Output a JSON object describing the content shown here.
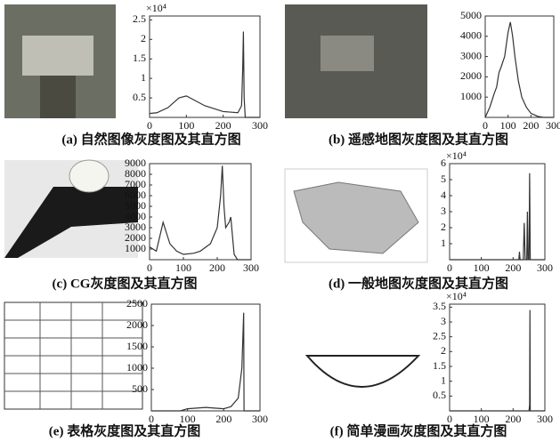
{
  "chart_data": [
    {
      "type": "line",
      "caption": "(a) 自然图像灰度图及其直方图",
      "exponent": "×10⁴",
      "xlim": [
        0,
        300
      ],
      "xticks": [
        0,
        100,
        200,
        300
      ],
      "ylim": [
        0,
        2.6
      ],
      "yticks": [
        0.5,
        1,
        1.5,
        2,
        2.5
      ],
      "series": [
        {
          "color": "#333333",
          "x": [
            0,
            20,
            50,
            80,
            100,
            120,
            150,
            200,
            240,
            250,
            253,
            255,
            257,
            260,
            300
          ],
          "values": [
            0.1,
            0.12,
            0.25,
            0.5,
            0.55,
            0.45,
            0.3,
            0.15,
            0.12,
            0.3,
            1.2,
            2.2,
            0.5,
            0,
            0
          ]
        }
      ]
    },
    {
      "type": "line",
      "caption": "(b) 遥感地图灰度图及其直方图",
      "xlim": [
        0,
        300
      ],
      "xticks": [
        0,
        100,
        200,
        300
      ],
      "ylim": [
        0,
        5000
      ],
      "yticks": [
        1000,
        2000,
        3000,
        4000,
        5000
      ],
      "series": [
        {
          "color": "#333333",
          "x": [
            0,
            20,
            40,
            50,
            60,
            70,
            85,
            100,
            110,
            120,
            130,
            145,
            160,
            180,
            200,
            230,
            255,
            300
          ],
          "values": [
            0,
            500,
            1200,
            1500,
            2200,
            2500,
            3000,
            4200,
            4700,
            4000,
            3000,
            1800,
            1000,
            500,
            200,
            50,
            0,
            0
          ]
        }
      ]
    },
    {
      "type": "line",
      "caption": "(c) CG灰度图及其直方图",
      "xlim": [
        0,
        300
      ],
      "xticks": [
        0,
        100,
        200,
        300
      ],
      "ylim": [
        0,
        9000
      ],
      "yticks": [
        1000,
        2000,
        3000,
        4000,
        5000,
        6000,
        7000,
        8000,
        9000
      ],
      "series": [
        {
          "color": "#333333",
          "x": [
            0,
            20,
            40,
            50,
            60,
            80,
            100,
            130,
            150,
            180,
            200,
            210,
            215,
            220,
            225,
            235,
            240,
            250,
            260,
            300
          ],
          "values": [
            1200,
            800,
            3500,
            2500,
            1500,
            800,
            500,
            600,
            800,
            1500,
            3000,
            6000,
            8800,
            5000,
            3000,
            3500,
            4000,
            500,
            0,
            0
          ]
        }
      ]
    },
    {
      "type": "line",
      "caption": "(d) 一般地图灰度图及其直方图",
      "exponent": "×10⁴",
      "xlim": [
        0,
        300
      ],
      "xticks": [
        0,
        100,
        200,
        300
      ],
      "ylim": [
        0,
        6
      ],
      "yticks": [
        1,
        2,
        3,
        4,
        5,
        6
      ],
      "series": [
        {
          "color": "#333333",
          "x": [
            0,
            200,
            218,
            220,
            222,
            232,
            235,
            238,
            243,
            245,
            247,
            250,
            252,
            254,
            300
          ],
          "values": [
            0,
            0,
            0,
            0.5,
            0,
            0,
            2.3,
            0,
            0,
            3,
            0,
            0,
            5.4,
            0,
            0
          ]
        }
      ]
    },
    {
      "type": "line",
      "caption": "(e) 表格灰度图及其直方图",
      "xlim": [
        0,
        300
      ],
      "xticks": [
        0,
        100,
        200,
        300
      ],
      "ylim": [
        0,
        2500
      ],
      "yticks": [
        500,
        1000,
        1500,
        2000,
        2500
      ],
      "series": [
        {
          "color": "#333333",
          "x": [
            0,
            80,
            100,
            150,
            200,
            220,
            240,
            250,
            255,
            256,
            300
          ],
          "values": [
            0,
            0,
            50,
            80,
            50,
            100,
            300,
            1000,
            2300,
            0,
            0
          ]
        }
      ]
    },
    {
      "type": "line",
      "caption": "(f) 简单漫画灰度图及其直方图",
      "exponent": "×10⁴",
      "xlim": [
        0,
        300
      ],
      "xticks": [
        0,
        100,
        200,
        300
      ],
      "ylim": [
        0,
        3.6
      ],
      "yticks": [
        0.5,
        1,
        1.5,
        2,
        2.5,
        3,
        3.5
      ],
      "series": [
        {
          "color": "#333333",
          "x": [
            0,
            250,
            252,
            253,
            254,
            300
          ],
          "values": [
            0,
            0,
            0.2,
            3.4,
            0,
            0
          ]
        }
      ]
    }
  ]
}
